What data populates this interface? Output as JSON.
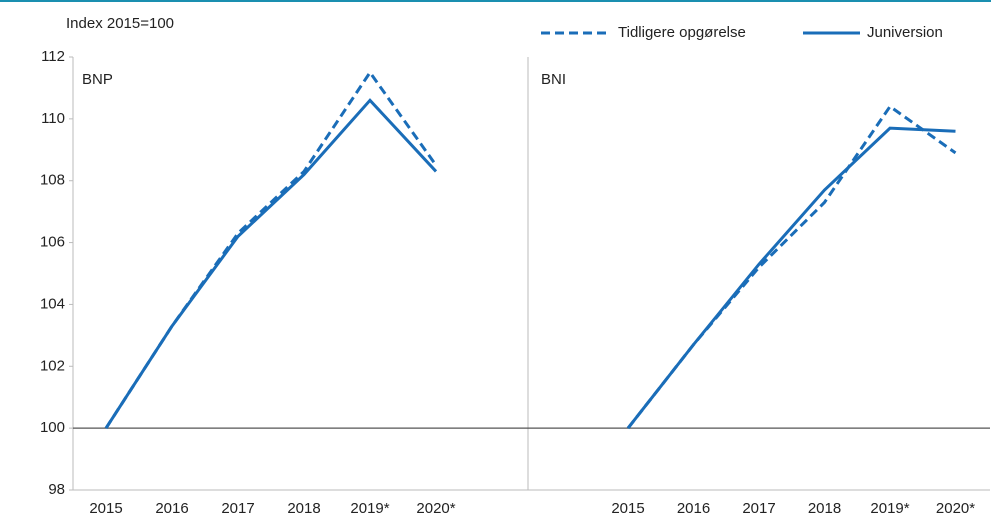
{
  "chart_data": {
    "type": "line",
    "ylabel": "Index 2015=100",
    "ylim": [
      98,
      112
    ],
    "yticks": [
      98,
      100,
      102,
      104,
      106,
      108,
      110,
      112
    ],
    "series": [
      {
        "name": "Tidligere opgørelse",
        "color": "#1a6db8",
        "dashed": true
      },
      {
        "name": "Juniversion",
        "color": "#1a6db8",
        "dashed": false
      }
    ],
    "panels": [
      {
        "title": "BNP",
        "categories": [
          "2015",
          "2016",
          "2017",
          "2018",
          "2019*",
          "2020*"
        ],
        "values": [
          [
            100,
            103.3,
            106.3,
            108.3,
            111.5,
            108.5
          ],
          [
            100,
            103.3,
            106.2,
            108.2,
            110.6,
            108.3
          ]
        ]
      },
      {
        "title": "BNI",
        "categories": [
          "2015",
          "2016",
          "2017",
          "2018",
          "2019*",
          "2020*"
        ],
        "values": [
          [
            100,
            102.7,
            105.2,
            107.3,
            110.4,
            108.9
          ],
          [
            100,
            102.7,
            105.3,
            107.7,
            109.7,
            109.6
          ]
        ]
      }
    ]
  }
}
